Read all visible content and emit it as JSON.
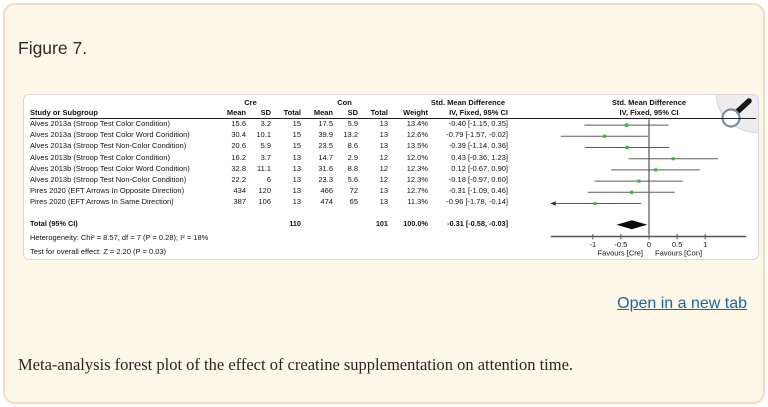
{
  "page": {
    "figure_label": "Figure 7.",
    "caption": "Meta-analysis forest plot of the effect of creatine supplementation on attention time.",
    "open_link_label": "Open in a new tab",
    "colors": {
      "page_background": "#fdf7e7",
      "page_border": "#f3d9c6",
      "link_blue": "#1766ab",
      "marker_green": "#2fc42f",
      "diamond_black": "#0a0a0a"
    }
  },
  "forest": {
    "group_headers": {
      "cre": "Cre",
      "con": "Con",
      "smd_col": "Std. Mean Difference",
      "smd_plot": "Std. Mean Difference"
    },
    "col_headers": {
      "study": "Study or Subgroup",
      "mean_cre": "Mean",
      "sd_cre": "SD",
      "total_cre": "Total",
      "mean_con": "Mean",
      "sd_con": "SD",
      "total_con": "Total",
      "weight": "Weight",
      "ci": "IV, Fixed, 95% CI",
      "ci_plot": "IV, Fixed, 95% CI"
    },
    "rows": [
      {
        "study": "Alves 2013a (Stroop Test Color Condition)",
        "mean_cre": "15.6",
        "sd_cre": "3.2",
        "total_cre": "15",
        "mean_con": "17.5",
        "sd_con": "5.9",
        "total_con": "13",
        "weight": "13.4%",
        "effect": "-0.40 [-1.15, 0.35]"
      },
      {
        "study": "Alves 2013a (Stroop Test Color Word Condition)",
        "mean_cre": "30.4",
        "sd_cre": "10.1",
        "total_cre": "15",
        "mean_con": "39.9",
        "sd_con": "13.2",
        "total_con": "13",
        "weight": "12.6%",
        "effect": "-0.79 [-1.57, -0.02]"
      },
      {
        "study": "Alves 2013a (Stroop Test Non-Color Condition)",
        "mean_cre": "20.6",
        "sd_cre": "5.9",
        "total_cre": "15",
        "mean_con": "23.5",
        "sd_con": "8.6",
        "total_con": "13",
        "weight": "13.5%",
        "effect": "-0.39 [-1.14, 0.36]"
      },
      {
        "study": "Alves 2013b (Stroop Test Color Condition)",
        "mean_cre": "16.2",
        "sd_cre": "3.7",
        "total_cre": "13",
        "mean_con": "14.7",
        "sd_con": "2.9",
        "total_con": "12",
        "weight": "12.0%",
        "effect": "0.43 [-0.36, 1.23]"
      },
      {
        "study": "Alves 2013b (Stroop Test Color Word Condition)",
        "mean_cre": "32.8",
        "sd_cre": "11.1",
        "total_cre": "13",
        "mean_con": "31.6",
        "sd_con": "8.8",
        "total_con": "12",
        "weight": "12.3%",
        "effect": "0.12 [-0.67, 0.90]"
      },
      {
        "study": "Alves 2013b (Stroop Test Non-Color Condition)",
        "mean_cre": "22.2",
        "sd_cre": "6",
        "total_cre": "13",
        "mean_con": "23.3",
        "sd_con": "5.6",
        "total_con": "12",
        "weight": "12.3%",
        "effect": "-0.18 [-0.97, 0.60]"
      },
      {
        "study": "Pires 2020 (EFT Arrows In Opposite Direction)",
        "mean_cre": "434",
        "sd_cre": "120",
        "total_cre": "13",
        "mean_con": "466",
        "sd_con": "72",
        "total_con": "13",
        "weight": "12.7%",
        "effect": "-0.31 [-1.09, 0.46]"
      },
      {
        "study": "Pires 2020 (EFT Arrows In Same Direction)",
        "mean_cre": "387",
        "sd_cre": "106",
        "total_cre": "13",
        "mean_con": "474",
        "sd_con": "65",
        "total_con": "13",
        "weight": "11.3%",
        "effect": "-0.96 [-1.78, -0.14]"
      }
    ],
    "total_row": {
      "label": "Total (95% CI)",
      "total_cre": "110",
      "total_con": "101",
      "weight": "100.0%",
      "effect": "-0.31 [-0.58, -0.03]"
    },
    "heterogeneity": "Heterogeneity: Chi² = 8.57, df = 7 (P = 0.28); I² = 18%",
    "overall_effect": "Test for overall effect: Z = 2.20 (P = 0.03)"
  },
  "chart_data": {
    "type": "forest",
    "effect_measure": "Std. Mean Difference",
    "model": "IV, Fixed, 95% CI",
    "x_ticks": [
      -1,
      -0.5,
      0,
      0.5,
      1
    ],
    "x_tick_labels": [
      "-1",
      "-0.5",
      "0",
      "0.5",
      "1"
    ],
    "plot_range": [
      -1.75,
      1.73
    ],
    "zero_line": 0,
    "favours_left": "Favours [Cre]",
    "favours_right": "Favours [Con]",
    "studies": [
      {
        "name": "Alves 2013a (Stroop Test Color Condition)",
        "est": -0.4,
        "lo": -1.15,
        "hi": 0.35,
        "weight_pct": 13.4
      },
      {
        "name": "Alves 2013a (Stroop Test Color Word Condition)",
        "est": -0.79,
        "lo": -1.57,
        "hi": -0.02,
        "weight_pct": 12.6
      },
      {
        "name": "Alves 2013a (Stroop Test Non-Color Condition)",
        "est": -0.39,
        "lo": -1.14,
        "hi": 0.36,
        "weight_pct": 13.5
      },
      {
        "name": "Alves 2013b (Stroop Test Color Condition)",
        "est": 0.43,
        "lo": -0.36,
        "hi": 1.23,
        "weight_pct": 12.0
      },
      {
        "name": "Alves 2013b (Stroop Test Color Word Condition)",
        "est": 0.12,
        "lo": -0.67,
        "hi": 0.9,
        "weight_pct": 12.3
      },
      {
        "name": "Alves 2013b (Stroop Test Non-Color Condition)",
        "est": -0.18,
        "lo": -0.97,
        "hi": 0.6,
        "weight_pct": 12.3
      },
      {
        "name": "Pires 2020 (EFT Arrows In Opposite Direction)",
        "est": -0.31,
        "lo": -1.09,
        "hi": 0.46,
        "weight_pct": 12.7
      },
      {
        "name": "Pires 2020 (EFT Arrows In Same Direction)",
        "est": -0.96,
        "lo": -1.78,
        "hi": -0.14,
        "weight_pct": 11.3
      }
    ],
    "total": {
      "est": -0.31,
      "lo": -0.58,
      "hi": -0.03,
      "weight_pct": 100.0
    }
  }
}
